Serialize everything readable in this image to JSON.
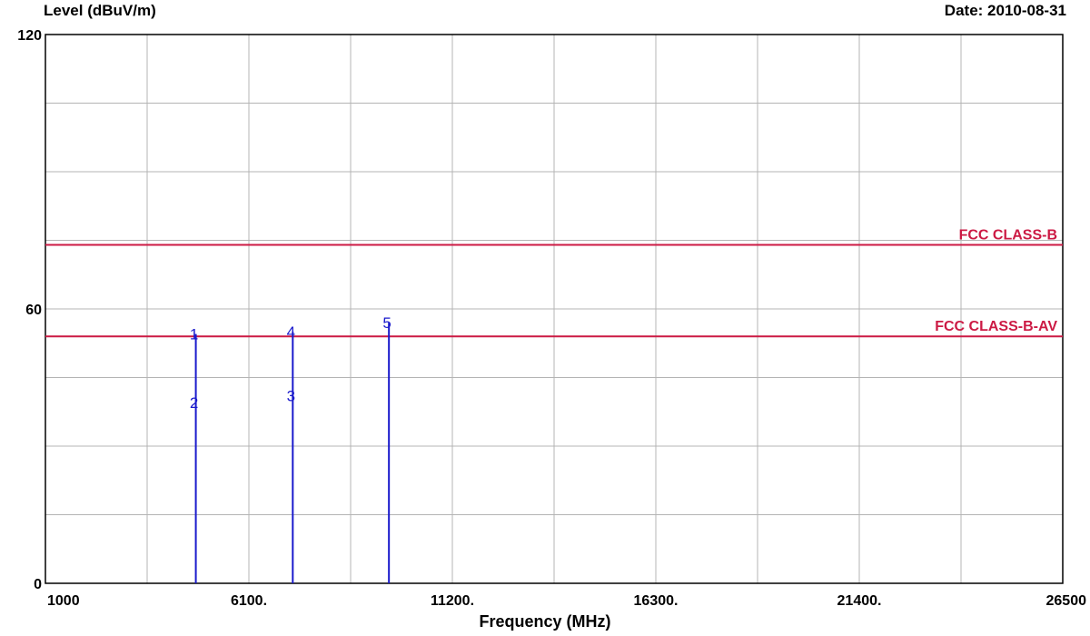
{
  "chart_data": {
    "type": "line",
    "ylabel": "Level (dBuV/m)",
    "date_label": "Date: 2010-08-31",
    "xlabel": "Frequency (MHz)",
    "xlim": [
      1000,
      26500
    ],
    "ylim": [
      0,
      120
    ],
    "x_ticks": [
      "1000",
      "6100.",
      "11200.",
      "16300.",
      "21400.",
      "26500"
    ],
    "x_tick_values": [
      1000,
      6100,
      11200,
      16300,
      21400,
      26500
    ],
    "y_ticks": [
      "0",
      "60",
      "120"
    ],
    "y_tick_values": [
      0,
      60,
      120
    ],
    "grid": true,
    "limit_lines": [
      {
        "name": "FCC CLASS-B",
        "value": 74,
        "color": "#cc1a44"
      },
      {
        "name": "FCC CLASS-B-AV",
        "value": 54,
        "color": "#cc1a44"
      }
    ],
    "markers": [
      {
        "label": "1",
        "x": 4770,
        "y": 54.5
      },
      {
        "label": "2",
        "x": 4770,
        "y": 39.5
      },
      {
        "label": "3",
        "x": 7200,
        "y": 41
      },
      {
        "label": "4",
        "x": 7200,
        "y": 55
      },
      {
        "label": "5",
        "x": 9610,
        "y": 57
      }
    ],
    "series_color": "#1a1acc",
    "colors": {
      "grid": "#b4b4b4",
      "axis": "#000000"
    }
  }
}
